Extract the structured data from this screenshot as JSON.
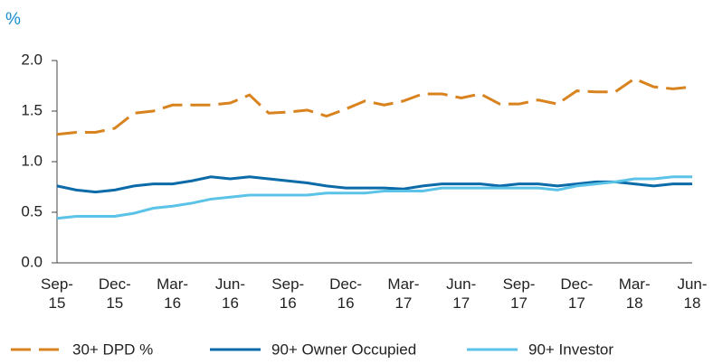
{
  "chart_data": {
    "type": "line",
    "ylabel": "%",
    "categories": [
      "Sep-\n15",
      null,
      null,
      "Dec-\n15",
      null,
      null,
      "Mar-\n16",
      null,
      null,
      "Jun-\n16",
      null,
      null,
      "Sep-\n16",
      null,
      null,
      "Dec-\n16",
      null,
      null,
      "Mar-\n17",
      null,
      null,
      "Jun-\n17",
      null,
      null,
      "Sep-\n17",
      null,
      null,
      "Dec-\n17",
      null,
      null,
      "Mar-\n18",
      null,
      null,
      "Jun-\n18"
    ],
    "series": [
      {
        "name": "30+ DPD %",
        "color": "#d9831f",
        "dashed": true,
        "values": [
          1.27,
          1.29,
          1.29,
          1.33,
          1.48,
          1.5,
          1.56,
          1.56,
          1.56,
          1.58,
          1.66,
          1.48,
          1.49,
          1.51,
          1.45,
          1.52,
          1.6,
          1.56,
          1.6,
          1.67,
          1.67,
          1.63,
          1.67,
          1.57,
          1.57,
          1.61,
          1.57,
          1.7,
          1.69,
          1.69,
          1.82,
          1.74,
          1.72,
          1.74
        ]
      },
      {
        "name": "90+ Owner Occupied",
        "color": "#0b6ba8",
        "dashed": false,
        "values": [
          0.76,
          0.72,
          0.7,
          0.72,
          0.76,
          0.78,
          0.78,
          0.81,
          0.85,
          0.83,
          0.85,
          0.83,
          0.81,
          0.79,
          0.76,
          0.74,
          0.74,
          0.74,
          0.73,
          0.76,
          0.78,
          0.78,
          0.78,
          0.76,
          0.78,
          0.78,
          0.76,
          0.78,
          0.8,
          0.8,
          0.78,
          0.76,
          0.78,
          0.78
        ]
      },
      {
        "name": "90+ Investor",
        "color": "#5cc3e8",
        "dashed": false,
        "values": [
          0.44,
          0.46,
          0.46,
          0.46,
          0.49,
          0.54,
          0.56,
          0.59,
          0.63,
          0.65,
          0.67,
          0.67,
          0.67,
          0.67,
          0.69,
          0.69,
          0.69,
          0.71,
          0.71,
          0.71,
          0.74,
          0.74,
          0.74,
          0.74,
          0.74,
          0.74,
          0.72,
          0.76,
          0.78,
          0.8,
          0.83,
          0.83,
          0.85,
          0.85
        ]
      }
    ],
    "ylim": [
      0,
      2
    ],
    "yticks": [
      {
        "value": 0,
        "label": "0.0"
      },
      0.5,
      {
        "value": 1,
        "label": "1.0"
      },
      1.5,
      {
        "value": 2,
        "label": "2.0"
      }
    ]
  }
}
